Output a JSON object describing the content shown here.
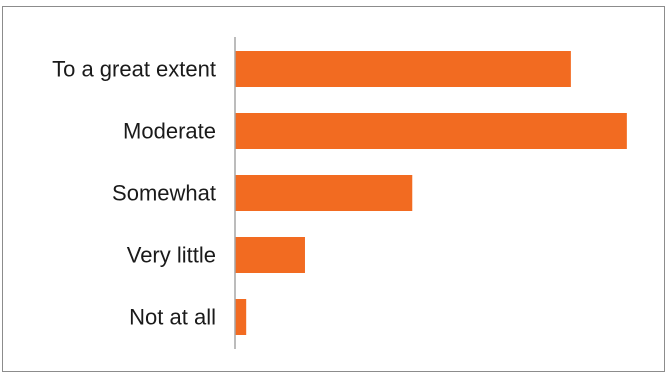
{
  "chart_data": {
    "type": "bar",
    "orientation": "horizontal",
    "categories": [
      "To a great extent",
      "Moderate",
      "Somewhat",
      "Very little",
      "Not at all"
    ],
    "values": [
      36,
      42,
      19,
      7.5,
      1.2
    ],
    "xlim": [
      0,
      50
    ],
    "grid": false,
    "bar_color": "#f26b21",
    "axis_color": "#a6a6a6",
    "label_color": "#1a1a1a"
  }
}
